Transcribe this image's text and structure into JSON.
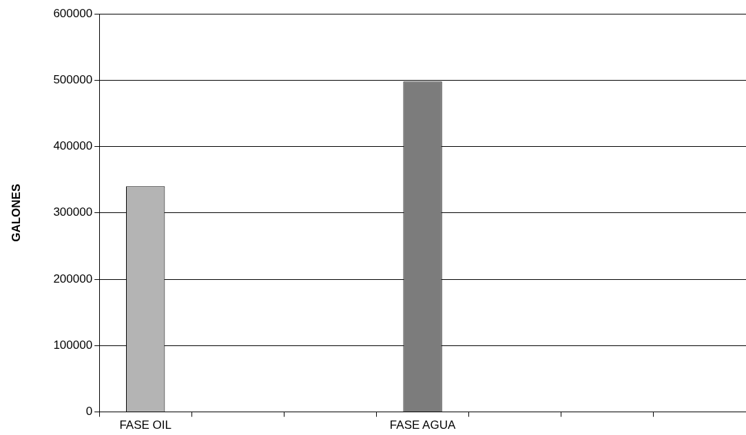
{
  "chart_data": {
    "type": "bar",
    "ylabel": "GALONES",
    "categories": [
      "FASE OIL",
      null,
      null,
      "FASE AGUA",
      null,
      null,
      null
    ],
    "values": [
      340000,
      null,
      null,
      498000,
      null,
      null,
      null
    ],
    "colors": [
      "#b4b4b4",
      null,
      null,
      "#7c7c7c",
      null,
      null,
      null
    ],
    "ylim": [
      0,
      600000
    ],
    "yticks": [
      0,
      100000,
      200000,
      300000,
      400000,
      500000,
      600000
    ],
    "grid": "y"
  }
}
